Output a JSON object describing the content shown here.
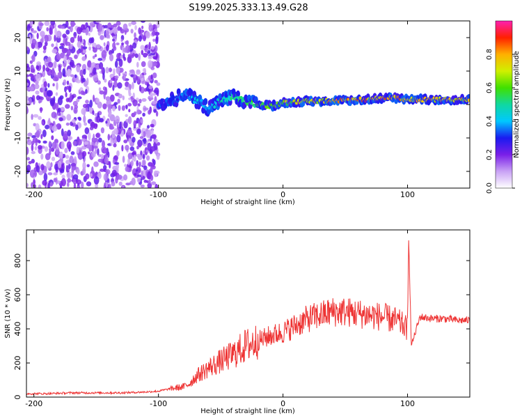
{
  "title": "S199.2025.333.13.49.G28",
  "colors": {
    "snr_line": "#ee3333",
    "spectro_bg": "#ffffff"
  },
  "chart_data": [
    {
      "type": "heatmap",
      "name": "spectrogram",
      "xlabel": "Height of straight line (km)",
      "ylabel": "Frequency (Hz)",
      "xlim": [
        -206,
        150
      ],
      "ylim": [
        -25,
        25
      ],
      "xticks": [
        -200,
        -100,
        0,
        100
      ],
      "xtick_labels": [
        "-200",
        "-100",
        "0",
        "100"
      ],
      "yticks": [
        -20,
        -10,
        0,
        10,
        20
      ],
      "ytick_labels": [
        "-20",
        "-10",
        "0",
        "10",
        "20"
      ],
      "description_track": {
        "x": [
          -100,
          -90,
          -80,
          -70,
          -60,
          -50,
          -40,
          -30,
          -20,
          -10,
          0,
          10,
          20,
          30,
          40,
          50,
          60,
          70,
          80,
          90,
          100,
          110,
          120,
          130,
          140,
          150
        ],
        "y": [
          0.5,
          1.0,
          3.0,
          1.5,
          -1.0,
          1.0,
          2.5,
          0.5,
          0.0,
          -0.5,
          0.5,
          0.8,
          1.0,
          1.0,
          1.2,
          1.2,
          1.5,
          1.5,
          2.0,
          2.0,
          1.5,
          1.5,
          1.5,
          1.5,
          1.5,
          1.5
        ],
        "amplitude": [
          0.3,
          0.35,
          0.4,
          0.45,
          0.45,
          0.5,
          0.55,
          0.6,
          0.65,
          0.7,
          0.75,
          0.8,
          0.82,
          0.85,
          0.85,
          0.88,
          0.9,
          0.9,
          0.95,
          0.9,
          0.85,
          0.85,
          0.85,
          0.85,
          0.85,
          0.85
        ]
      },
      "noise_region_x": [
        -206,
        -100
      ]
    },
    {
      "type": "colorbar",
      "name": "colorbar",
      "label": "Normalized spectral amplitude",
      "range": [
        0.0,
        1.0
      ],
      "ticks": [
        0.0,
        0.2,
        0.4,
        0.6,
        0.8
      ],
      "tick_labels": [
        "0.0",
        "0.2",
        "0.4",
        "0.6",
        "0.8"
      ]
    },
    {
      "type": "line",
      "name": "snr",
      "xlabel": "Height of straight line (km)",
      "ylabel": "SNR (10 * v/v)",
      "xlim": [
        -206,
        150
      ],
      "ylim": [
        0,
        980
      ],
      "xticks": [
        -200,
        -100,
        0,
        100
      ],
      "xtick_labels": [
        "-200",
        "-100",
        "0",
        "100"
      ],
      "yticks": [
        0,
        200,
        400,
        600,
        800
      ],
      "ytick_labels": [
        "0",
        "200",
        "400",
        "600",
        "800"
      ],
      "series": [
        {
          "name": "SNR",
          "x": [
            -206,
            -190,
            -170,
            -150,
            -130,
            -110,
            -100,
            -90,
            -80,
            -75,
            -70,
            -60,
            -50,
            -40,
            -30,
            -20,
            -10,
            0,
            10,
            20,
            30,
            40,
            50,
            60,
            70,
            80,
            90,
            95,
            100,
            101,
            103,
            110,
            120,
            130,
            140,
            150
          ],
          "y": [
            20,
            20,
            25,
            25,
            25,
            30,
            35,
            50,
            60,
            80,
            120,
            170,
            210,
            250,
            300,
            330,
            360,
            380,
            420,
            460,
            480,
            500,
            500,
            490,
            480,
            470,
            450,
            430,
            400,
            960,
            300,
            470,
            460,
            460,
            450,
            450
          ]
        }
      ]
    }
  ]
}
